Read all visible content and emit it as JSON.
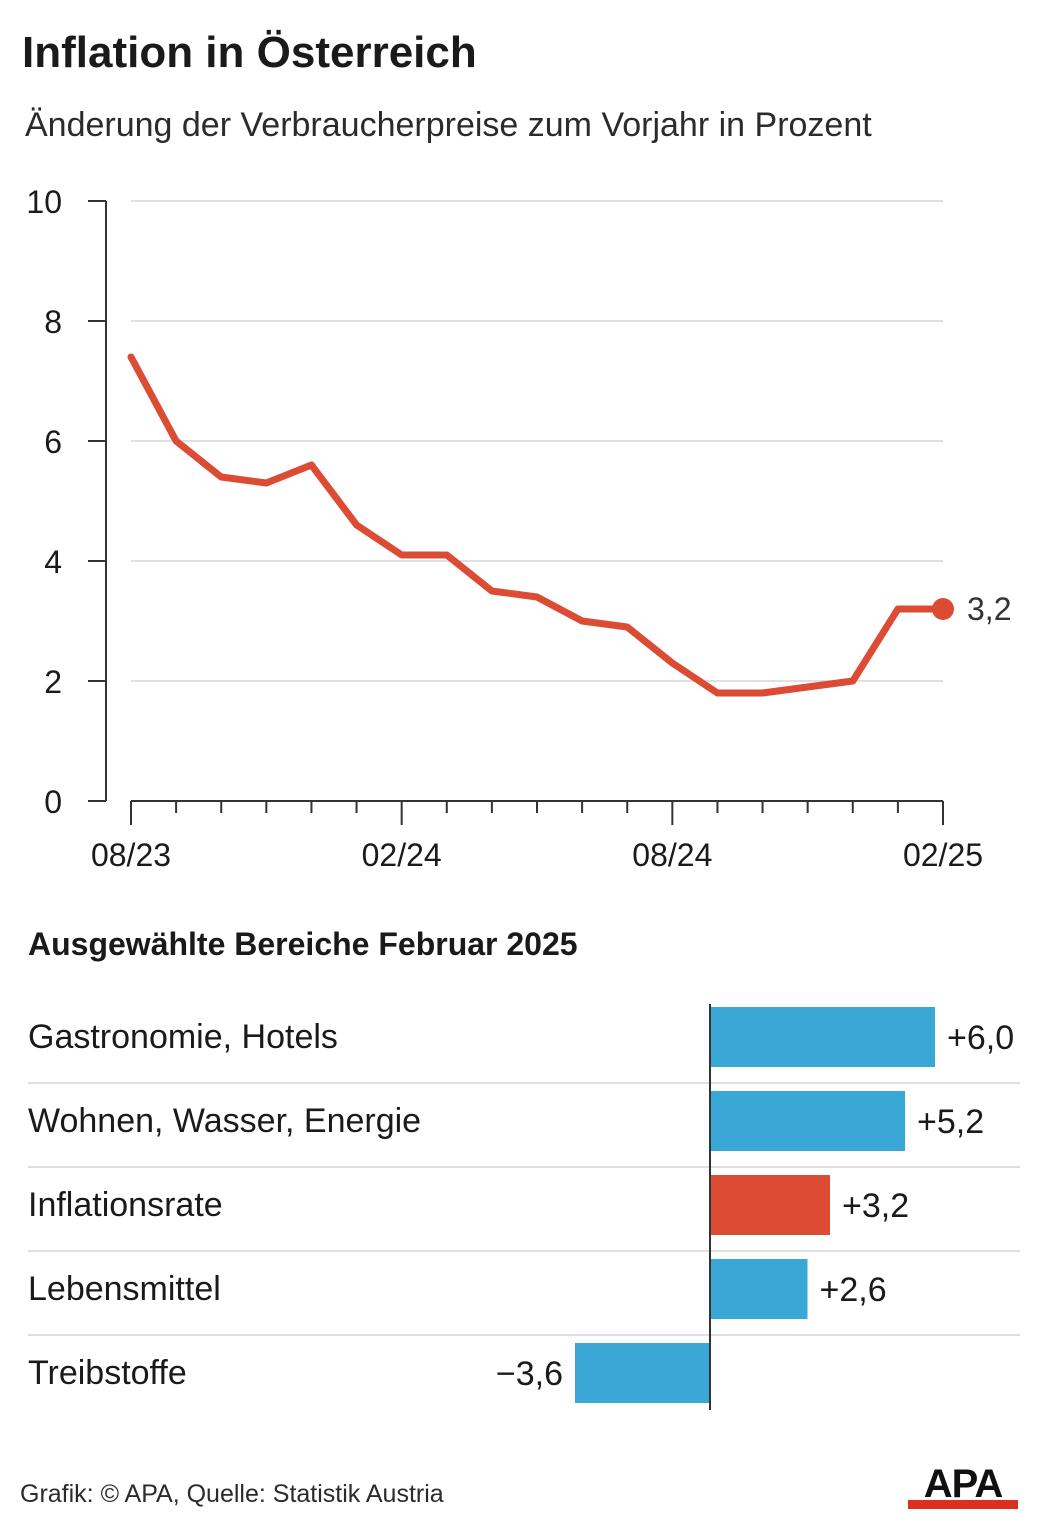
{
  "header": {
    "title": "Inflation in Österreich",
    "subtitle": "Änderung der Verbraucherpreise zum Vorjahr in Prozent"
  },
  "chart_data": [
    {
      "type": "line",
      "x": [
        "08/23",
        "09/23",
        "10/23",
        "11/23",
        "12/23",
        "01/24",
        "02/24",
        "03/24",
        "04/24",
        "05/24",
        "06/24",
        "07/24",
        "08/24",
        "09/24",
        "10/24",
        "11/24",
        "12/24",
        "01/25",
        "02/25"
      ],
      "values": [
        7.4,
        6.0,
        5.4,
        5.3,
        5.6,
        4.6,
        4.1,
        4.1,
        3.5,
        3.4,
        3.0,
        2.9,
        2.3,
        1.8,
        1.8,
        1.9,
        2.0,
        3.2,
        3.2
      ],
      "x_tick_labels": [
        "08/23",
        "02/24",
        "08/24",
        "02/25"
      ],
      "y_tick_labels": [
        "0",
        "2",
        "4",
        "6",
        "8",
        "10"
      ],
      "ylim": [
        0,
        10
      ],
      "end_label": "3,2",
      "grid": true,
      "color": "#dc4b34"
    },
    {
      "type": "bar",
      "orientation": "horizontal",
      "title": "Ausgewählte Bereiche Februar 2025",
      "categories": [
        "Gastronomie, Hotels",
        "Wohnen, Wasser, Energie",
        "Inflationsrate",
        "Lebensmittel",
        "Treibstoffe"
      ],
      "values": [
        6.0,
        5.2,
        3.2,
        2.6,
        -3.6
      ],
      "value_labels": [
        "+6,0",
        "+5,2",
        "+3,2",
        "+2,6",
        "−3,6"
      ],
      "colors": [
        "#3aa8d6",
        "#3aa8d6",
        "#dc4b34",
        "#3aa8d6",
        "#3aa8d6"
      ]
    }
  ],
  "footer": {
    "credit": "Grafik: © APA, Quelle: Statistik Austria"
  },
  "logo": {
    "text": "APA",
    "colors": {
      "text": "#111111",
      "bar": "#dc2f1e"
    }
  }
}
